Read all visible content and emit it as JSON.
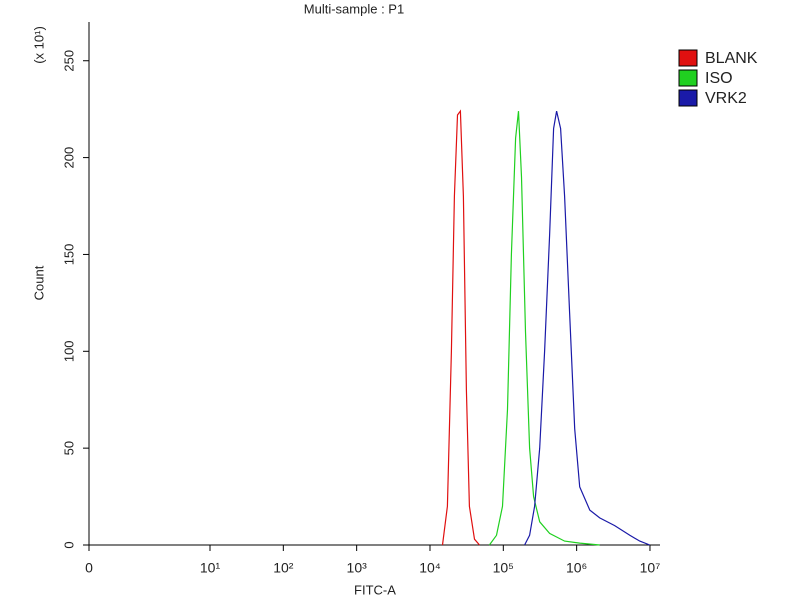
{
  "chart_data": {
    "type": "line",
    "title": "Multi-sample : P1",
    "xlabel": "FITC-A",
    "ylabel": "Count",
    "ylabel_multiplier": "(x 10¹)",
    "xscale": "symlog",
    "linthresh": 1,
    "linscale": 0.65,
    "xlim": [
      0,
      13700000
    ],
    "xticks": [
      0,
      {
        "value": 10,
        "label": "10¹"
      },
      {
        "value": 100,
        "label": "10²"
      },
      {
        "value": 1000,
        "label": "10³"
      },
      {
        "value": 10000,
        "label": "10⁴"
      },
      {
        "value": 100000,
        "label": "10⁵"
      },
      {
        "value": 1000000,
        "label": "10⁶"
      },
      {
        "value": 10000000,
        "label": "10⁷"
      }
    ],
    "ylim": [
      0,
      270
    ],
    "yticks": [
      0,
      50,
      100,
      150,
      200,
      250
    ],
    "legend": "right",
    "series": [
      {
        "name": "BLANK",
        "color": "#e01010",
        "x": [
          14800,
          17300,
          19600,
          21500,
          23700,
          26000,
          28600,
          31400,
          34500,
          40400,
          47300
        ],
        "values": [
          0,
          20,
          100,
          180,
          222,
          224,
          180,
          80,
          20,
          3,
          0
        ]
      },
      {
        "name": "ISO",
        "color": "#20d020",
        "x": [
          64700,
          80700,
          97500,
          114000,
          129000,
          147000,
          161000,
          177000,
          201000,
          228000,
          259000,
          313000,
          428000,
          686000,
          1100000,
          2060000
        ],
        "values": [
          0,
          5,
          20,
          70,
          150,
          210,
          224,
          190,
          110,
          50,
          25,
          12,
          6,
          2,
          1,
          0
        ]
      },
      {
        "name": "VRK2",
        "color": "#1a1aa8",
        "x": [
          195000,
          228000,
          267000,
          313000,
          366000,
          428000,
          485000,
          533000,
          604000,
          686000,
          802000,
          940000,
          1100000,
          1510000,
          2060000,
          3300000,
          5300000,
          7260000,
          9940000
        ],
        "values": [
          0,
          5,
          20,
          50,
          100,
          160,
          215,
          224,
          215,
          180,
          120,
          60,
          30,
          18,
          14,
          10,
          5,
          2,
          0
        ]
      }
    ]
  }
}
